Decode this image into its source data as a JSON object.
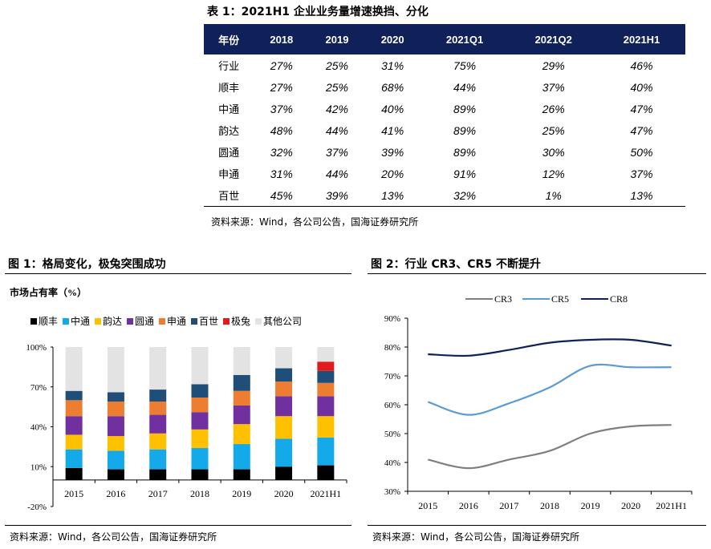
{
  "table1": {
    "caption": "表 1：2021H1 企业业务量增速换挡、分化",
    "columns": [
      "年份",
      "2018",
      "2019",
      "2020",
      "2021Q1",
      "2021Q2",
      "2021H1"
    ],
    "rows": [
      [
        "行业",
        "27%",
        "25%",
        "31%",
        "75%",
        "29%",
        "46%"
      ],
      [
        "顺丰",
        "27%",
        "25%",
        "68%",
        "44%",
        "37%",
        "40%"
      ],
      [
        "中通",
        "37%",
        "42%",
        "40%",
        "89%",
        "26%",
        "47%"
      ],
      [
        "韵达",
        "48%",
        "44%",
        "41%",
        "89%",
        "25%",
        "47%"
      ],
      [
        "圆通",
        "32%",
        "37%",
        "39%",
        "89%",
        "30%",
        "50%"
      ],
      [
        "申通",
        "31%",
        "44%",
        "20%",
        "91%",
        "12%",
        "37%"
      ],
      [
        "百世",
        "45%",
        "39%",
        "13%",
        "32%",
        "1%",
        "13%"
      ]
    ],
    "source": "资料来源：Wind，各公司公告，国海证券研究所",
    "header_color": "#0f2158"
  },
  "figure1": {
    "caption": "图 1：格局变化，极兔突围成功",
    "source": "资料来源：Wind，各公司公告，国海证券研究所",
    "chart_data": {
      "type": "bar",
      "stacked": true,
      "title": "市场占有率（%）",
      "categories": [
        "2015",
        "2016",
        "2017",
        "2018",
        "2019",
        "2020",
        "2021H1"
      ],
      "ylim": [
        -20,
        100
      ],
      "yticks": [
        "100%",
        "70%",
        "40%",
        "10%",
        "-20%"
      ],
      "legend_position": "top",
      "series": [
        {
          "name": "顺丰",
          "color": "#000000",
          "values": [
            9,
            8,
            8,
            8,
            8,
            10,
            11
          ]
        },
        {
          "name": "中通",
          "color": "#14a9e8",
          "values": [
            14,
            14,
            15,
            16,
            19,
            21,
            21
          ]
        },
        {
          "name": "韵达",
          "color": "#ffc000",
          "values": [
            11,
            11,
            12,
            14,
            15,
            17,
            16
          ]
        },
        {
          "name": "圆通",
          "color": "#7030a0",
          "values": [
            14,
            15,
            14,
            13,
            14,
            15,
            15
          ]
        },
        {
          "name": "申通",
          "color": "#ed7d31",
          "values": [
            12,
            11,
            10,
            11,
            11,
            11,
            10
          ]
        },
        {
          "name": "百世",
          "color": "#1f4e79",
          "values": [
            7,
            7,
            9,
            10,
            12,
            10,
            9
          ]
        },
        {
          "name": "极兔",
          "color": "#e31a1c",
          "values": [
            0,
            0,
            0,
            0,
            0,
            0,
            7
          ]
        },
        {
          "name": "其他公司",
          "color": "#e3e3e3",
          "values": [
            33,
            34,
            32,
            28,
            21,
            16,
            11
          ]
        }
      ]
    }
  },
  "figure2": {
    "caption": "图 2：行业 CR3、CR5 不断提升",
    "source": "资料来源：Wind，各公司公告，国海证券研究所",
    "chart_data": {
      "type": "line",
      "x": [
        "2015",
        "2016",
        "2017",
        "2018",
        "2019",
        "2020",
        "2021H1"
      ],
      "ylim": [
        30,
        90
      ],
      "yticks": [
        "90%",
        "80%",
        "70%",
        "60%",
        "50%",
        "40%",
        "30%"
      ],
      "grid": false,
      "legend_position": "top",
      "series": [
        {
          "name": "CR3",
          "color": "#7f7f7f",
          "values": [
            41,
            38,
            41,
            44,
            50,
            52.5,
            53
          ]
        },
        {
          "name": "CR5",
          "color": "#5b9bd5",
          "values": [
            61,
            56.5,
            60.5,
            66,
            73.5,
            73,
            73
          ]
        },
        {
          "name": "CR8",
          "color": "#0f2158",
          "values": [
            77.5,
            77,
            79,
            81.5,
            82.5,
            82.5,
            80.5
          ]
        }
      ]
    }
  }
}
